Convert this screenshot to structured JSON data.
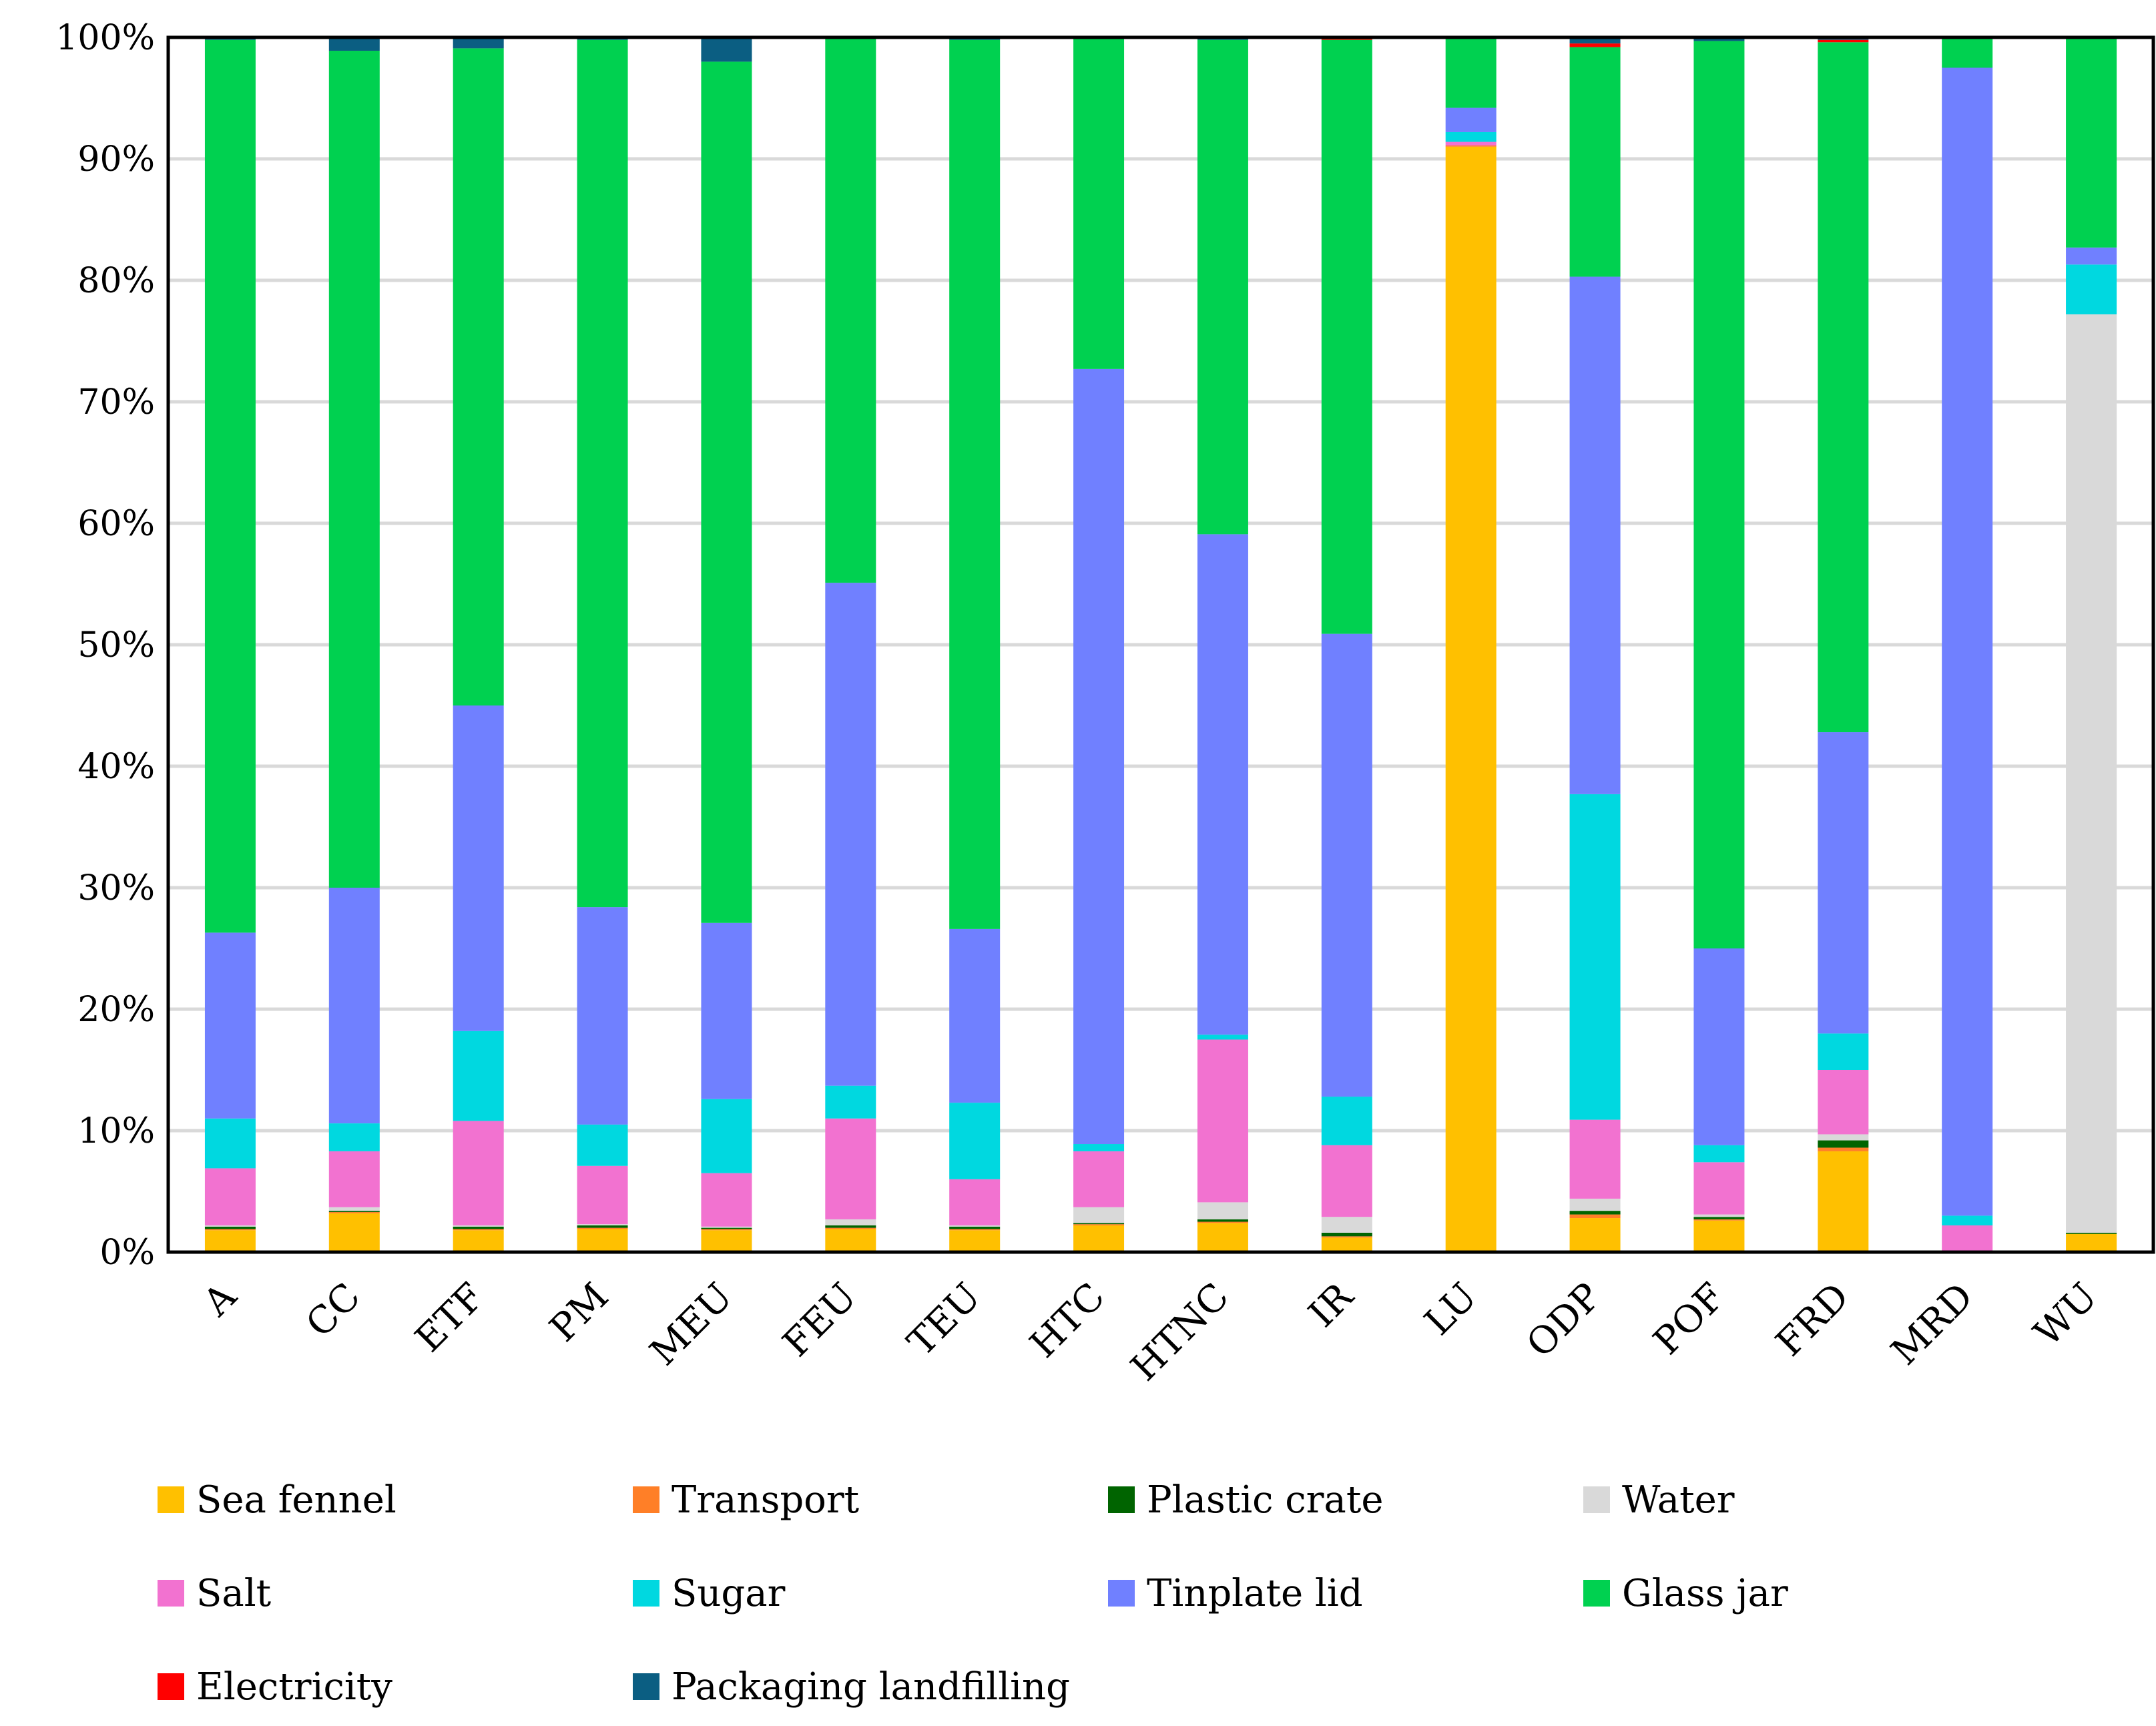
{
  "chart_data": {
    "type": "bar",
    "stacked": true,
    "title": "",
    "xlabel": "",
    "ylabel": "",
    "ylim": [
      0,
      100
    ],
    "y_ticks": [
      "0%",
      "10%",
      "20%",
      "30%",
      "40%",
      "50%",
      "60%",
      "70%",
      "80%",
      "90%",
      "100%"
    ],
    "grid": true,
    "legend_position": "bottom",
    "categories": [
      "A",
      "CC",
      "ETF",
      "PM",
      "MEU",
      "FEU",
      "TEU",
      "HTC",
      "HTNC",
      "IR",
      "LU",
      "ODP",
      "POF",
      "FRD",
      "MRD",
      "WU"
    ],
    "series": [
      {
        "name": "Sea fennel",
        "color": "#FFC000",
        "values": [
          1.8,
          3.2,
          1.8,
          1.9,
          1.8,
          1.9,
          1.8,
          2.2,
          2.4,
          1.2,
          91.0,
          2.8,
          2.6,
          8.3,
          0.0,
          1.5
        ]
      },
      {
        "name": "Transport",
        "color": "#FF7F27",
        "values": [
          0.1,
          0.1,
          0.1,
          0.1,
          0.1,
          0.1,
          0.1,
          0.1,
          0.1,
          0.1,
          0.1,
          0.3,
          0.1,
          0.3,
          0.0,
          0.0
        ]
      },
      {
        "name": "Plastic crate",
        "color": "#006400",
        "values": [
          0.2,
          0.1,
          0.2,
          0.2,
          0.1,
          0.2,
          0.2,
          0.1,
          0.2,
          0.3,
          0.0,
          0.3,
          0.2,
          0.6,
          0.0,
          0.1
        ]
      },
      {
        "name": "Water",
        "color": "#D9D9D9",
        "values": [
          0.1,
          0.3,
          0.1,
          0.1,
          0.1,
          0.5,
          0.1,
          1.3,
          1.4,
          1.3,
          0.0,
          1.0,
          0.2,
          0.5,
          0.0,
          75.6
        ]
      },
      {
        "name": "Salt",
        "color": "#F272D0",
        "values": [
          4.7,
          4.6,
          8.6,
          4.8,
          4.4,
          8.3,
          3.8,
          4.6,
          13.4,
          5.9,
          0.3,
          6.5,
          4.3,
          5.3,
          2.2,
          0.0
        ]
      },
      {
        "name": "Sugar",
        "color": "#00D8E0",
        "values": [
          4.1,
          2.3,
          7.4,
          3.4,
          6.1,
          2.7,
          6.3,
          0.6,
          0.4,
          4.0,
          0.8,
          26.8,
          1.4,
          3.0,
          0.8,
          4.1
        ]
      },
      {
        "name": "Tinplate lid",
        "color": "#7080FF",
        "values": [
          15.3,
          19.4,
          26.8,
          17.9,
          14.5,
          41.4,
          14.3,
          63.8,
          41.2,
          38.1,
          2.0,
          42.6,
          16.2,
          24.8,
          94.5,
          1.4
        ]
      },
      {
        "name": "Glass jar",
        "color": "#00D150",
        "values": [
          73.5,
          68.9,
          54.1,
          71.4,
          70.9,
          44.8,
          73.2,
          27.2,
          40.7,
          48.9,
          5.8,
          18.9,
          74.7,
          56.8,
          2.5,
          17.2
        ]
      },
      {
        "name": "Electricity",
        "color": "#FF0000",
        "values": [
          0.0,
          0.0,
          0.0,
          0.0,
          0.0,
          0.0,
          0.0,
          0.0,
          0.0,
          0.1,
          0.0,
          0.3,
          0.0,
          0.2,
          0.0,
          0.0
        ]
      },
      {
        "name": "Packaging landfilling",
        "color": "#0B5E82",
        "values": [
          0.2,
          1.1,
          0.9,
          0.2,
          2.0,
          0.1,
          0.2,
          0.1,
          0.2,
          0.1,
          0.0,
          0.5,
          0.3,
          0.2,
          0.0,
          0.1
        ]
      }
    ]
  }
}
